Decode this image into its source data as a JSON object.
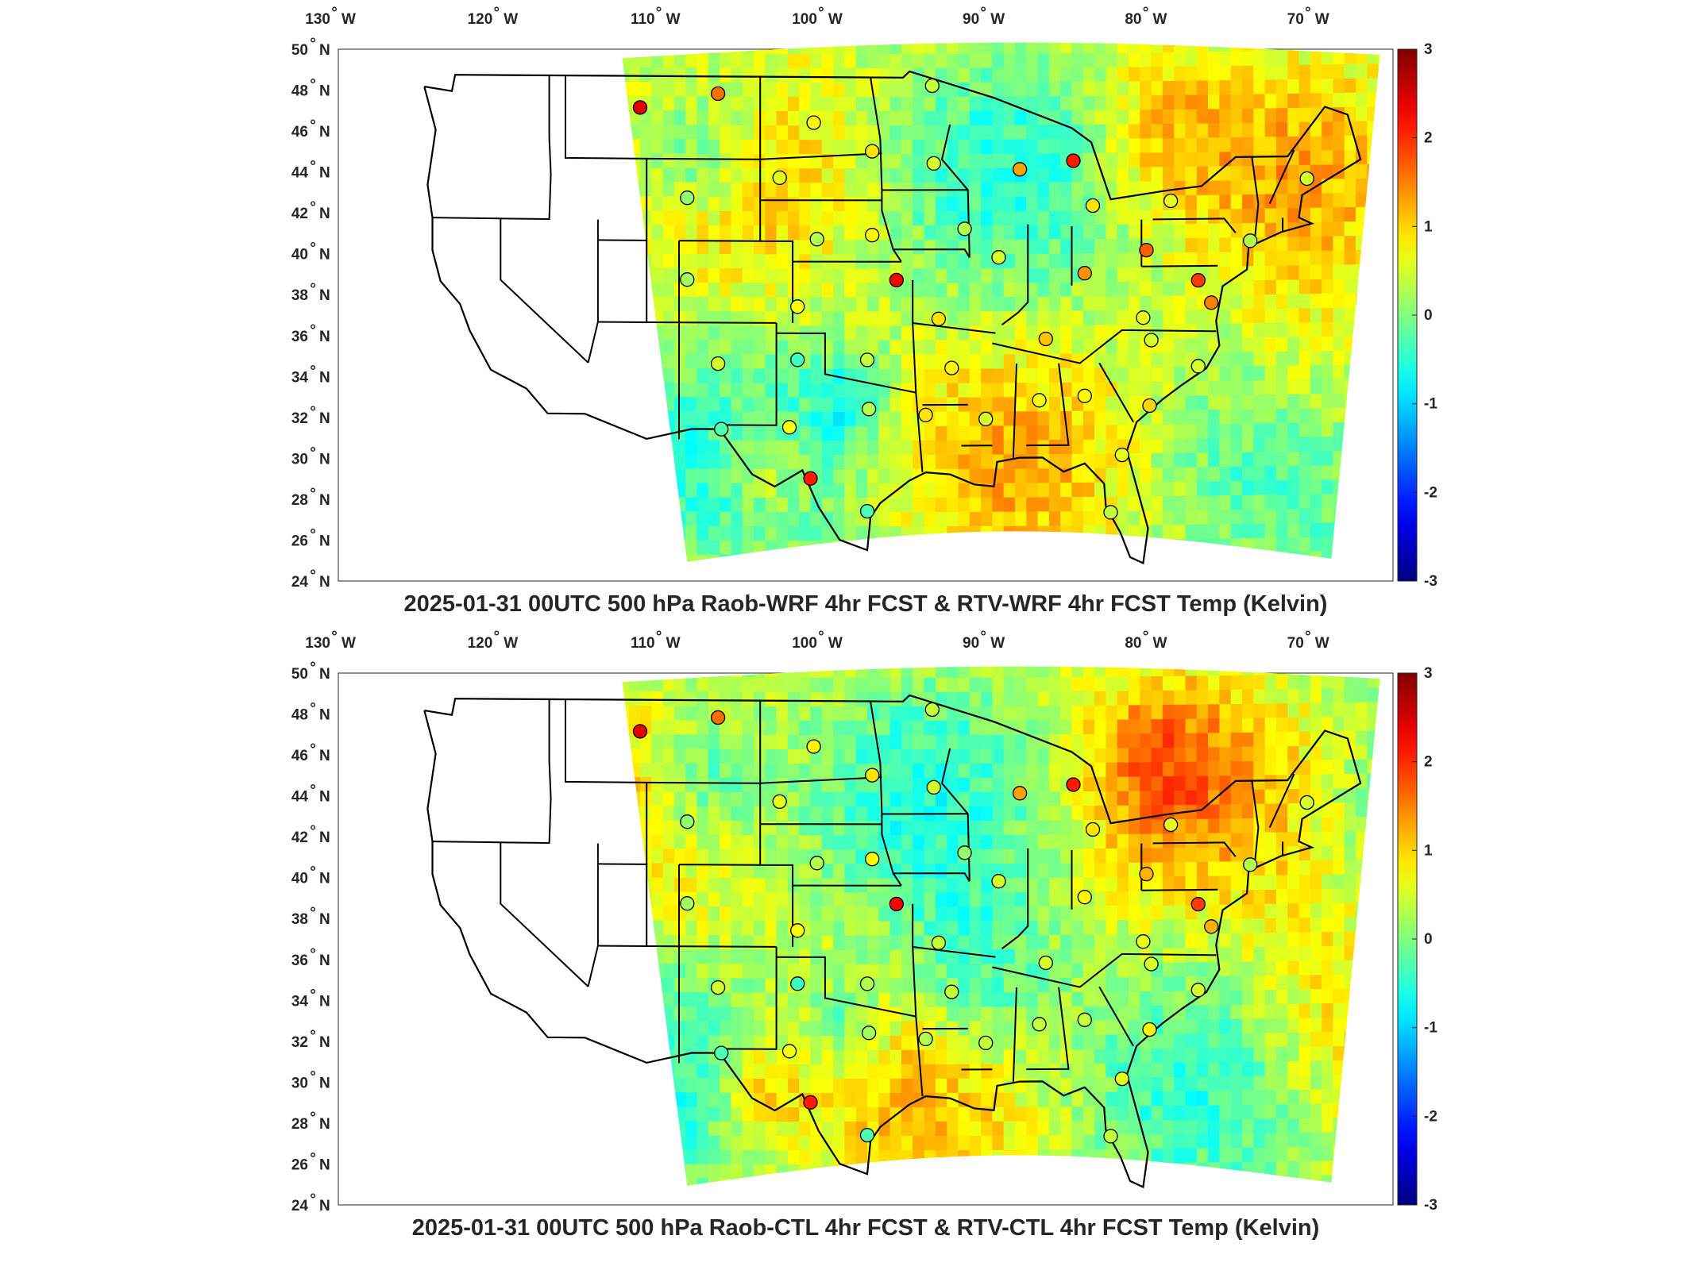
{
  "colorbar": {
    "min": -3,
    "max": 3,
    "tick_labels": [
      "3",
      "2",
      "1",
      "0",
      "-1",
      "-2",
      "-3"
    ],
    "colormap": "jet",
    "colors": [
      "#000080",
      "#0000ff",
      "#00ffff",
      "#00ff80",
      "#ffff00",
      "#ff8000",
      "#ff0000",
      "#800000"
    ]
  },
  "axes": {
    "lon_labels": [
      "130",
      "120",
      "110",
      "100",
      "90",
      "80",
      "70"
    ],
    "lon_hemisphere": "W",
    "lat_labels": [
      "50",
      "48",
      "46",
      "44",
      "42",
      "40",
      "38",
      "36",
      "34",
      "32",
      "30",
      "28",
      "26",
      "24"
    ],
    "lat_hemisphere": "N",
    "degree_symbol": "°"
  },
  "panels": [
    {
      "title": "2025-01-31 00UTC 500 hPa Raob-WRF 4hr FCST & RTV-WRF 4hr FCST Temp (Kelvin)"
    },
    {
      "title": "2025-01-31 00UTC 500 hPa Raob-CTL 4hr FCST & RTV-CTL 4hr FCST Temp (Kelvin)"
    }
  ],
  "chart_data": [
    {
      "type": "heatmap",
      "title": "2025-01-31 00UTC 500 hPa Raob-WRF 4hr FCST & RTV-WRF 4hr FCST Temp (Kelvin)",
      "units": "Kelvin",
      "lon_range": [
        -130,
        -65
      ],
      "lat_range": [
        24,
        50
      ],
      "clim": [
        -3,
        3
      ],
      "raob_points": [
        {
          "lon": -111.4,
          "lat": 47.5,
          "value": 2.4
        },
        {
          "lon": -106.6,
          "lat": 48.2,
          "value": 1.6
        },
        {
          "lon": -100.7,
          "lat": 46.8,
          "value": 0.8
        },
        {
          "lon": -97.1,
          "lat": 45.4,
          "value": 0.9
        },
        {
          "lon": -93.4,
          "lat": 48.6,
          "value": 0.4
        },
        {
          "lon": -93.3,
          "lat": 44.8,
          "value": 0.5
        },
        {
          "lon": -102.8,
          "lat": 44.1,
          "value": 0.6
        },
        {
          "lon": -108.5,
          "lat": 43.1,
          "value": 0.1
        },
        {
          "lon": -100.5,
          "lat": 41.1,
          "value": 0.3
        },
        {
          "lon": -97.1,
          "lat": 41.3,
          "value": 0.8
        },
        {
          "lon": -108.5,
          "lat": 39.1,
          "value": 0.2
        },
        {
          "lon": -101.7,
          "lat": 37.8,
          "value": 0.7
        },
        {
          "lon": -95.6,
          "lat": 39.1,
          "value": 2.3
        },
        {
          "lon": -93.0,
          "lat": 37.2,
          "value": 0.9
        },
        {
          "lon": -106.6,
          "lat": 35.0,
          "value": 0.5
        },
        {
          "lon": -101.7,
          "lat": 35.2,
          "value": -0.4
        },
        {
          "lon": -97.4,
          "lat": 35.2,
          "value": 0.4
        },
        {
          "lon": -92.2,
          "lat": 34.8,
          "value": 0.8
        },
        {
          "lon": -97.3,
          "lat": 32.8,
          "value": 0.3
        },
        {
          "lon": -106.4,
          "lat": 31.8,
          "value": -0.3
        },
        {
          "lon": -102.2,
          "lat": 31.9,
          "value": 0.7
        },
        {
          "lon": -93.8,
          "lat": 32.5,
          "value": 0.9
        },
        {
          "lon": -90.1,
          "lat": 32.3,
          "value": 0.5
        },
        {
          "lon": -100.9,
          "lat": 29.4,
          "value": 2.1
        },
        {
          "lon": -97.4,
          "lat": 27.8,
          "value": -0.3
        },
        {
          "lon": -91.4,
          "lat": 41.6,
          "value": 0.3
        },
        {
          "lon": -89.3,
          "lat": 40.2,
          "value": 0.5
        },
        {
          "lon": -88.0,
          "lat": 44.5,
          "value": 1.3
        },
        {
          "lon": -84.7,
          "lat": 44.9,
          "value": 2.1
        },
        {
          "lon": -83.5,
          "lat": 42.7,
          "value": 0.9
        },
        {
          "lon": -80.2,
          "lat": 40.5,
          "value": 1.7
        },
        {
          "lon": -84.0,
          "lat": 39.4,
          "value": 1.4
        },
        {
          "lon": -86.4,
          "lat": 36.2,
          "value": 1.1
        },
        {
          "lon": -80.4,
          "lat": 37.2,
          "value": 0.6
        },
        {
          "lon": -79.9,
          "lat": 36.1,
          "value": 0.5
        },
        {
          "lon": -77.0,
          "lat": 39.0,
          "value": 1.9
        },
        {
          "lon": -76.2,
          "lat": 37.9,
          "value": 1.5
        },
        {
          "lon": -77.0,
          "lat": 34.8,
          "value": 0.5
        },
        {
          "lon": -80.0,
          "lat": 32.9,
          "value": 1.0
        },
        {
          "lon": -84.0,
          "lat": 33.4,
          "value": 0.8
        },
        {
          "lon": -86.8,
          "lat": 33.2,
          "value": 0.7
        },
        {
          "lon": -81.7,
          "lat": 30.5,
          "value": 0.6
        },
        {
          "lon": -82.4,
          "lat": 27.7,
          "value": 0.4
        },
        {
          "lon": -78.7,
          "lat": 42.9,
          "value": 0.6
        },
        {
          "lon": -73.8,
          "lat": 40.9,
          "value": 0.3
        },
        {
          "lon": -70.3,
          "lat": 43.9,
          "value": 0.5
        }
      ]
    },
    {
      "type": "heatmap",
      "title": "2025-01-31 00UTC 500 hPa Raob-CTL 4hr FCST & RTV-CTL 4hr FCST Temp (Kelvin)",
      "units": "Kelvin",
      "lon_range": [
        -130,
        -65
      ],
      "lat_range": [
        24,
        50
      ],
      "clim": [
        -3,
        3
      ],
      "raob_points": [
        {
          "lon": -111.4,
          "lat": 47.5,
          "value": 2.4
        },
        {
          "lon": -106.6,
          "lat": 48.2,
          "value": 1.6
        },
        {
          "lon": -100.7,
          "lat": 46.8,
          "value": 0.8
        },
        {
          "lon": -97.1,
          "lat": 45.4,
          "value": 0.9
        },
        {
          "lon": -93.4,
          "lat": 48.6,
          "value": 0.4
        },
        {
          "lon": -93.3,
          "lat": 44.8,
          "value": 0.5
        },
        {
          "lon": -102.8,
          "lat": 44.1,
          "value": 0.6
        },
        {
          "lon": -108.5,
          "lat": 43.1,
          "value": 0.1
        },
        {
          "lon": -100.5,
          "lat": 41.1,
          "value": 0.3
        },
        {
          "lon": -97.1,
          "lat": 41.3,
          "value": 0.8
        },
        {
          "lon": -108.5,
          "lat": 39.1,
          "value": 0.2
        },
        {
          "lon": -101.7,
          "lat": 37.8,
          "value": 0.7
        },
        {
          "lon": -95.6,
          "lat": 39.1,
          "value": 2.3
        },
        {
          "lon": -93.0,
          "lat": 37.2,
          "value": 0.4
        },
        {
          "lon": -106.6,
          "lat": 35.0,
          "value": 0.5
        },
        {
          "lon": -101.7,
          "lat": 35.2,
          "value": -0.4
        },
        {
          "lon": -97.4,
          "lat": 35.2,
          "value": 0.3
        },
        {
          "lon": -92.2,
          "lat": 34.8,
          "value": 0.4
        },
        {
          "lon": -97.3,
          "lat": 32.8,
          "value": 0.2
        },
        {
          "lon": -106.4,
          "lat": 31.8,
          "value": -0.3
        },
        {
          "lon": -102.2,
          "lat": 31.9,
          "value": 0.7
        },
        {
          "lon": -93.8,
          "lat": 32.5,
          "value": 0.3
        },
        {
          "lon": -90.1,
          "lat": 32.3,
          "value": 0.4
        },
        {
          "lon": -100.9,
          "lat": 29.4,
          "value": 2.1
        },
        {
          "lon": -97.4,
          "lat": 27.8,
          "value": -0.3
        },
        {
          "lon": -91.4,
          "lat": 41.6,
          "value": 0.1
        },
        {
          "lon": -89.3,
          "lat": 40.2,
          "value": 0.5
        },
        {
          "lon": -88.0,
          "lat": 44.5,
          "value": 1.3
        },
        {
          "lon": -84.7,
          "lat": 44.9,
          "value": 2.1
        },
        {
          "lon": -83.5,
          "lat": 42.7,
          "value": 0.9
        },
        {
          "lon": -80.2,
          "lat": 40.5,
          "value": 1.2
        },
        {
          "lon": -84.0,
          "lat": 39.4,
          "value": 0.8
        },
        {
          "lon": -86.4,
          "lat": 36.2,
          "value": 0.5
        },
        {
          "lon": -80.4,
          "lat": 37.2,
          "value": 0.6
        },
        {
          "lon": -79.9,
          "lat": 36.1,
          "value": 0.5
        },
        {
          "lon": -77.0,
          "lat": 39.0,
          "value": 1.9
        },
        {
          "lon": -76.2,
          "lat": 37.9,
          "value": 1.2
        },
        {
          "lon": -77.0,
          "lat": 34.8,
          "value": 0.5
        },
        {
          "lon": -80.0,
          "lat": 32.9,
          "value": 0.8
        },
        {
          "lon": -84.0,
          "lat": 33.4,
          "value": 0.4
        },
        {
          "lon": -86.8,
          "lat": 33.2,
          "value": 0.4
        },
        {
          "lon": -81.7,
          "lat": 30.5,
          "value": 0.6
        },
        {
          "lon": -82.4,
          "lat": 27.7,
          "value": 0.4
        },
        {
          "lon": -78.7,
          "lat": 42.9,
          "value": 0.6
        },
        {
          "lon": -73.8,
          "lat": 40.9,
          "value": 0.3
        },
        {
          "lon": -70.3,
          "lat": 43.9,
          "value": 0.5
        }
      ]
    }
  ]
}
